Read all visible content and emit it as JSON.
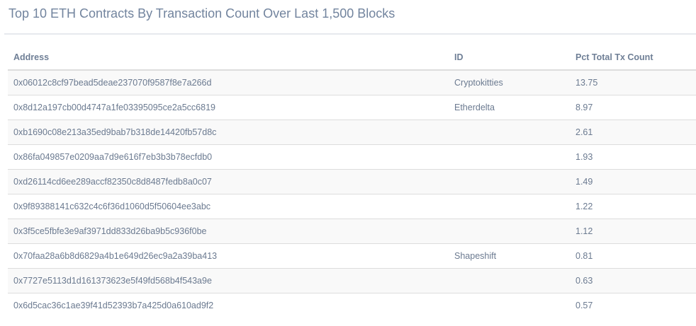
{
  "title": "Top 10 ETH Contracts By Transaction Count Over Last 1,500 Blocks",
  "table": {
    "columns": [
      "Address",
      "ID",
      "Pct Total Tx Count"
    ],
    "rows": [
      {
        "address": "0x06012c8cf97bead5deae237070f9587f8e7a266d",
        "id": "Cryptokitties",
        "pct": "13.75"
      },
      {
        "address": "0x8d12a197cb00d4747a1fe03395095ce2a5cc6819",
        "id": "Etherdelta",
        "pct": "8.97"
      },
      {
        "address": "0xb1690c08e213a35ed9bab7b318de14420fb57d8c",
        "id": "",
        "pct": "2.61"
      },
      {
        "address": "0x86fa049857e0209aa7d9e616f7eb3b3b78ecfdb0",
        "id": "",
        "pct": "1.93"
      },
      {
        "address": "0xd26114cd6ee289accf82350c8d8487fedb8a0c07",
        "id": "",
        "pct": "1.49"
      },
      {
        "address": "0x9f89388141c632c4c6f36d1060d5f50604ee3abc",
        "id": "",
        "pct": "1.22"
      },
      {
        "address": "0x3f5ce5fbfe3e9af3971dd833d26ba9b5c936f0be",
        "id": "",
        "pct": "1.12"
      },
      {
        "address": "0x70faa28a6b8d6829a4b1e649d26ec9a2a39ba413",
        "id": "Shapeshift",
        "pct": "0.81"
      },
      {
        "address": "0x7727e5113d1d161373623e5f49fd568b4f543a9e",
        "id": "",
        "pct": "0.63"
      },
      {
        "address": "0x6d5cac36c1ae39f41d52393b7a425d0a610ad9f2",
        "id": "",
        "pct": "0.57"
      }
    ]
  }
}
